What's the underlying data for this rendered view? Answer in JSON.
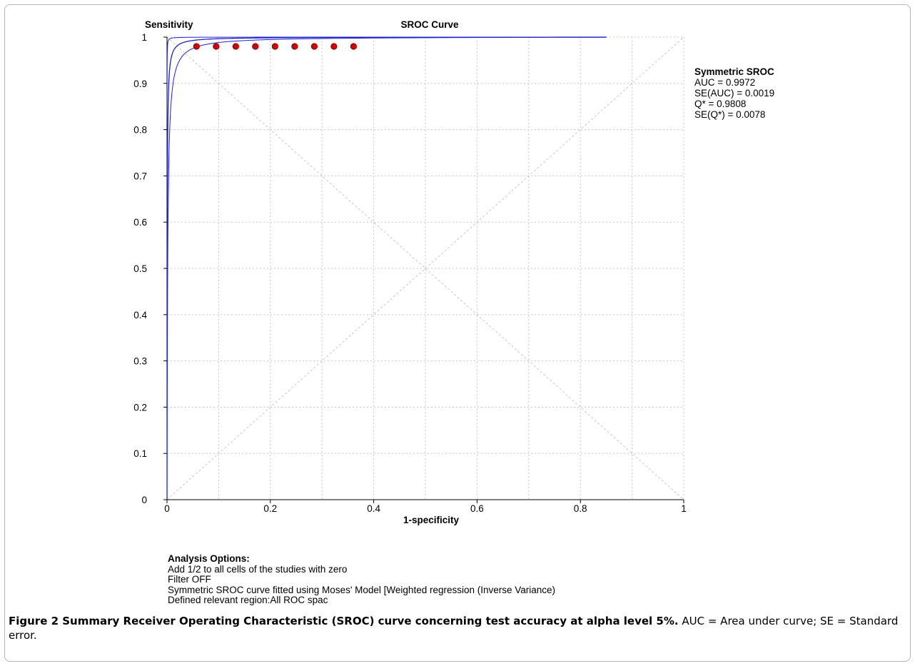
{
  "chart_data": {
    "type": "scatter",
    "title": "SROC Curve",
    "ylabel": "Sensitivity",
    "xlabel": "1-specificity",
    "xlim": [
      0,
      1
    ],
    "ylim": [
      0,
      1
    ],
    "grid": true,
    "x_ticks": [
      "0",
      "0.2",
      "0.4",
      "0.6",
      "0.8",
      "1"
    ],
    "y_ticks": [
      "0",
      "0.1",
      "0.2",
      "0.3",
      "0.4",
      "0.5",
      "0.6",
      "0.7",
      "0.8",
      "0.9",
      "1"
    ],
    "points": {
      "color": "#d40000",
      "x": [
        0.057,
        0.095,
        0.133,
        0.171,
        0.209,
        0.247,
        0.285,
        0.323,
        0.361
      ],
      "y": [
        0.98,
        0.98,
        0.98,
        0.98,
        0.98,
        0.98,
        0.98,
        0.98,
        0.98
      ]
    },
    "curves": {
      "color": "#2020d0",
      "fitted_q": 0.9808,
      "lower_q": 0.965,
      "upper_q": 0.9956,
      "x_end": 0.85
    },
    "reference_lines": [
      "diagonal",
      "anti-diagonal"
    ],
    "annotation": {
      "title": "Symmetric SROC",
      "lines": [
        "AUC = 0.9972",
        "SE(AUC) = 0.0019",
        "Q* = 0.9808",
        "SE(Q*) = 0.0078"
      ]
    }
  },
  "analysis_options": {
    "heading": "Analysis Options:",
    "lines": [
      "Add 1/2 to all cells of the studies with zero",
      "Filter OFF",
      "Symmetric SROC curve fitted using Moses' Model [Weighted regression (Inverse Variance)",
      "Defined relevant region:All ROC spac"
    ]
  },
  "caption": {
    "title": "Figure 2 Summary Receiver Operating Characteristic (SROC) curve concerning test accuracy at alpha level 5%.",
    "text": " AUC = Area under curve; SE = Standard error."
  }
}
